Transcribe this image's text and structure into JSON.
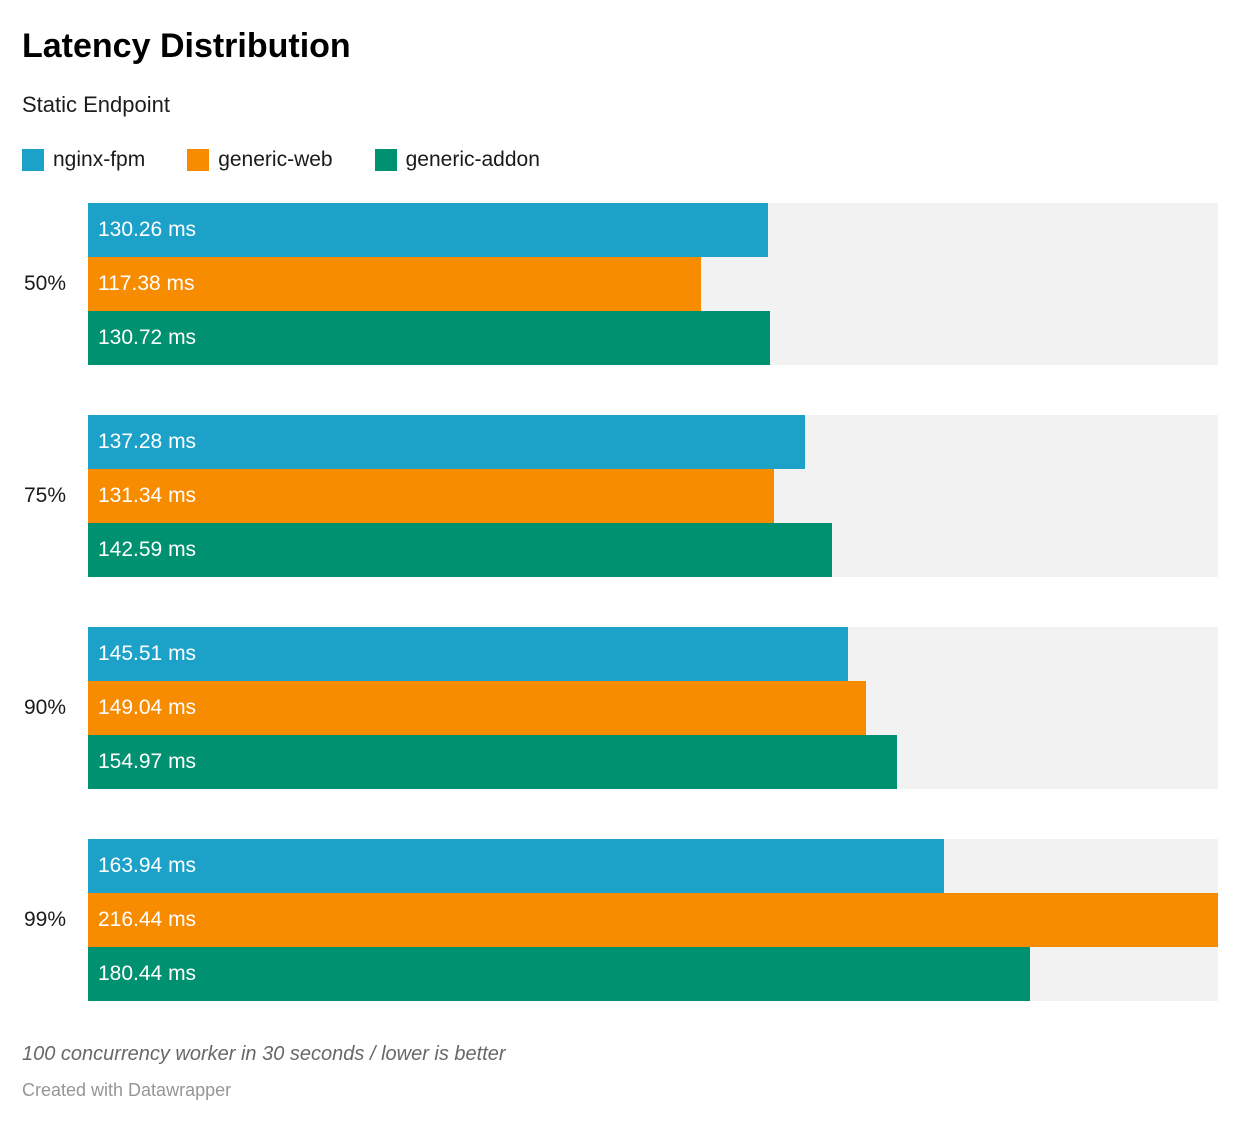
{
  "header": {
    "title": "Latency Distribution",
    "subtitle": "Static Endpoint"
  },
  "footer": {
    "footnote": "100 concurrency worker in 30 seconds / lower is better",
    "attribution": "Created with Datawrapper"
  },
  "colors": {
    "nginx_fpm": "#1CA2C9",
    "generic_web": "#F88C00",
    "generic_addon": "#009170",
    "track": "#F2F2F2",
    "bar_label_text": "#FFFFFF"
  },
  "chart_data": {
    "type": "bar",
    "orientation": "horizontal",
    "title": "Latency Distribution",
    "subtitle": "Static Endpoint",
    "categories": [
      "50%",
      "75%",
      "90%",
      "99%"
    ],
    "series": [
      {
        "name": "nginx-fpm",
        "color": "#1CA2C9",
        "values": [
          130.26,
          137.28,
          145.51,
          163.94
        ],
        "labels": [
          "130.26 ms",
          "137.28 ms",
          "145.51 ms",
          "163.94 ms"
        ]
      },
      {
        "name": "generic-web",
        "color": "#F88C00",
        "values": [
          117.38,
          131.34,
          149.04,
          216.44
        ],
        "labels": [
          "117.38 ms",
          "131.34 ms",
          "149.04 ms",
          "216.44 ms"
        ]
      },
      {
        "name": "generic-addon",
        "color": "#009170",
        "values": [
          130.72,
          142.59,
          154.97,
          180.44
        ],
        "labels": [
          "130.72 ms",
          "142.59 ms",
          "154.97 ms",
          "180.44 ms"
        ]
      }
    ],
    "value_unit": "ms",
    "xlim": [
      0,
      216.44
    ],
    "track_color": "#F2F2F2",
    "grid": false,
    "legend_position": "top-left",
    "legend": [
      {
        "label": "nginx-fpm",
        "color": "#1CA2C9"
      },
      {
        "label": "generic-web",
        "color": "#F88C00"
      },
      {
        "label": "generic-addon",
        "color": "#009170"
      }
    ]
  }
}
